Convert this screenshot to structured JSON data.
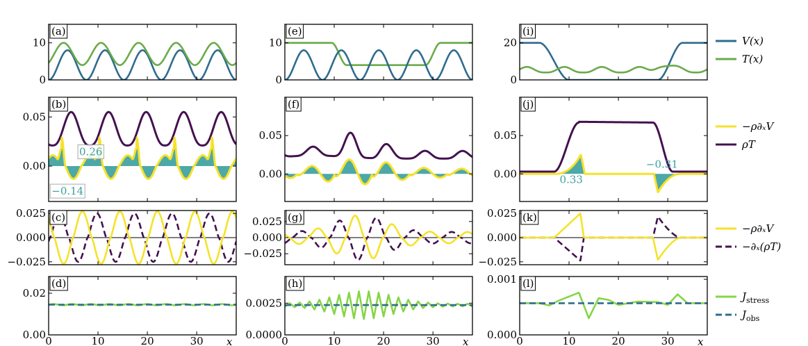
{
  "chart_data": {
    "type": "line",
    "title": "",
    "xlabel": "x",
    "xlim": [
      0,
      38
    ],
    "xticks": [
      0,
      10,
      20,
      30
    ],
    "colors": {
      "V": "#2f6c8e",
      "T": "#6aab4a",
      "force": "#f5e22a",
      "rhoT": "#44114f",
      "fill": "#3a9e9e",
      "Jstress": "#86d549",
      "Jobs": "#2f6c8e",
      "annotation": "#3a9e9e"
    },
    "panels": [
      {
        "id": "a",
        "label": "(a)",
        "row": 0,
        "col": 0,
        "ylim": [
          0,
          15
        ],
        "yticks": [
          0,
          10
        ],
        "ytick_labels": [
          "0",
          "10"
        ],
        "generator": "a"
      },
      {
        "id": "e",
        "label": "(e)",
        "row": 0,
        "col": 1,
        "ylim": [
          0,
          15
        ],
        "yticks": [
          0,
          10
        ],
        "ytick_labels": [
          "0",
          "10"
        ],
        "generator": "e"
      },
      {
        "id": "i",
        "label": "(i)",
        "row": 0,
        "col": 2,
        "ylim": [
          0,
          30
        ],
        "yticks": [
          0,
          20
        ],
        "ytick_labels": [
          "0",
          "20"
        ],
        "generator": "i"
      },
      {
        "id": "b",
        "label": "(b)",
        "row": 1,
        "col": 0,
        "ylim": [
          -0.036,
          0.07
        ],
        "yticks": [
          0,
          0.05
        ],
        "ytick_labels": [
          "0.00",
          "0.05"
        ],
        "generator": "b",
        "annotations": [
          {
            "text": "0.26",
            "x": 6.2,
            "y": 0.011,
            "boxed": true
          },
          {
            "text": "−0.14",
            "x": 0.6,
            "y": -0.029,
            "boxed": true
          }
        ]
      },
      {
        "id": "f",
        "label": "(f)",
        "row": 1,
        "col": 1,
        "ylim": [
          -0.036,
          0.1
        ],
        "yticks": [
          0,
          0.05
        ],
        "ytick_labels": [
          "0.00",
          "0.05"
        ],
        "generator": "f"
      },
      {
        "id": "j",
        "label": "(j)",
        "row": 1,
        "col": 2,
        "ylim": [
          -0.036,
          0.1
        ],
        "yticks": [
          0,
          0.05
        ],
        "ytick_labels": [
          "0.00",
          "0.05"
        ],
        "generator": "j",
        "annotations": [
          {
            "text": "0.33",
            "x": 8.1,
            "y": -0.012,
            "boxed": false
          },
          {
            "text": "−0.31",
            "x": 25.6,
            "y": 0.008,
            "boxed": false
          }
        ]
      },
      {
        "id": "c",
        "label": "(c)",
        "row": 2,
        "col": 0,
        "ylim": [
          -0.028,
          0.028
        ],
        "yticks": [
          -0.025,
          0,
          0.025
        ],
        "ytick_labels": [
          "−0.025",
          "0.000",
          "0.025"
        ],
        "generator": "c"
      },
      {
        "id": "g",
        "label": "(g)",
        "row": 2,
        "col": 1,
        "ylim": [
          -0.042,
          0.042
        ],
        "yticks": [
          -0.025,
          0,
          0.025
        ],
        "ytick_labels": [
          "−0.025",
          "0.000",
          "0.025"
        ],
        "generator": "g"
      },
      {
        "id": "k",
        "label": "(k)",
        "row": 2,
        "col": 2,
        "ylim": [
          -0.028,
          0.028
        ],
        "yticks": [
          -0.025,
          0,
          0.025
        ],
        "ytick_labels": [
          "−0.025",
          "0.000",
          "0.025"
        ],
        "generator": "k"
      },
      {
        "id": "d",
        "label": "(d)",
        "row": 3,
        "col": 0,
        "ylim": [
          0,
          0.028
        ],
        "yticks": [
          0,
          0.02
        ],
        "ytick_labels": [
          "0.00",
          "0.02"
        ],
        "generator": "d"
      },
      {
        "id": "h",
        "label": "(h)",
        "row": 3,
        "col": 1,
        "ylim": [
          0,
          0.0046
        ],
        "yticks": [
          0,
          0.0025
        ],
        "ytick_labels": [
          "0.0000",
          "0.0025"
        ],
        "generator": "h"
      },
      {
        "id": "l",
        "label": "(l)",
        "row": 3,
        "col": 2,
        "ylim": [
          0,
          0.00105
        ],
        "yticks": [
          0,
          0.001
        ],
        "ytick_labels": [
          "0.000",
          "0.001"
        ],
        "generator": "l"
      }
    ],
    "series_params": {
      "J_obs_values": {
        "d": 0.0145,
        "h": 0.00235,
        "l": 0.00057
      },
      "T_baseline_e": 10,
      "T_well_e": 4,
      "V_barrier_i": 20,
      "V_amplitude": 8
    },
    "legends": [
      {
        "row": 0,
        "entries": [
          {
            "label": "V(x)",
            "color_key": "V",
            "dash": false
          },
          {
            "label": "T(x)",
            "color_key": "T",
            "dash": false
          }
        ]
      },
      {
        "row": 1,
        "entries": [
          {
            "label": "−ρ∂ₓV",
            "color_key": "force",
            "dash": false
          },
          {
            "label": "ρT",
            "color_key": "rhoT",
            "dash": false
          }
        ]
      },
      {
        "row": 2,
        "entries": [
          {
            "label": "−ρ∂ₓV",
            "color_key": "force",
            "dash": false
          },
          {
            "label": "−∂ₓ(ρT)",
            "color_key": "rhoT",
            "dash": true
          }
        ]
      },
      {
        "row": 3,
        "entries": [
          {
            "label": "J_stress",
            "color_key": "Jstress",
            "dash": false
          },
          {
            "label": "J_obs",
            "color_key": "Jobs",
            "dash": true
          }
        ]
      }
    ]
  }
}
